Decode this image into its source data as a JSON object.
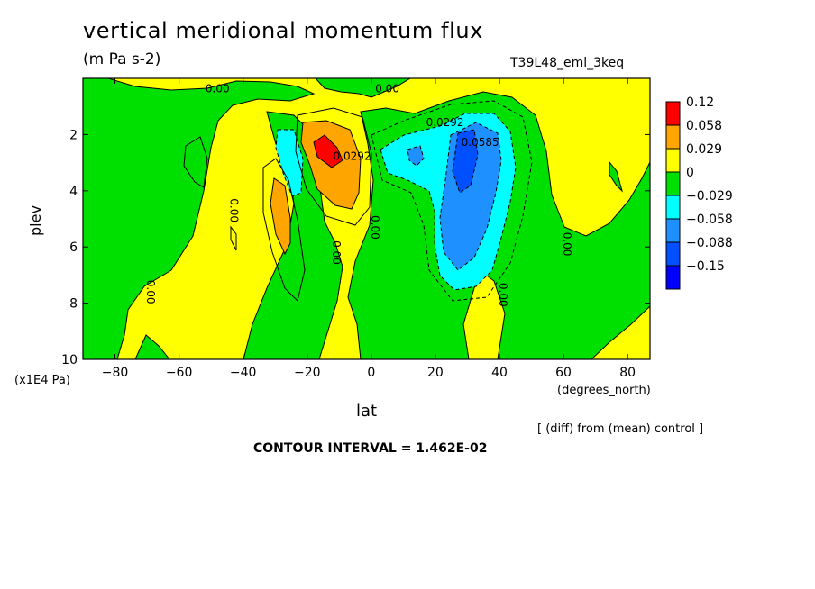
{
  "chart_data": {
    "type": "heatmap",
    "title": "vertical meridional momentum flux",
    "subtitle": "(m Pa s-2)",
    "run_label": "T39L48_eml_3keq",
    "xlabel": "lat",
    "xunit": "(degrees_north)",
    "ylabel": "plev",
    "yunit": "(x1E4 Pa)",
    "xlim": [
      -90,
      87
    ],
    "ylim": [
      0,
      10
    ],
    "y_inverted": true,
    "x_ticks": [
      -80,
      -60,
      -40,
      -20,
      0,
      20,
      40,
      60,
      80
    ],
    "x_tick_labels": [
      "−80",
      "−60",
      "−40",
      "−20",
      "0",
      "20",
      "40",
      "60",
      "80"
    ],
    "y_ticks": [
      2,
      4,
      6,
      8,
      10
    ],
    "y_tick_labels": [
      "2",
      "4",
      "6",
      "8",
      "10"
    ],
    "legend": {
      "placement": "right",
      "labels": [
        "0.12",
        "0.058",
        "0.029",
        "0",
        "−0.029",
        "−0.058",
        "−0.088",
        "−0.15"
      ],
      "colors": [
        "#ff0000",
        "#ffa500",
        "#ffff00",
        "#00e000",
        "#00ffff",
        "#1e90ff",
        "#0050ff",
        "#0000ff"
      ]
    },
    "contour_labels": [
      {
        "text": "0.00",
        "lon": -48,
        "p": 0.5
      },
      {
        "text": "0.00",
        "lon": 5,
        "p": 0.5
      },
      {
        "text": "0.00",
        "lon": -44,
        "p": 4.7
      },
      {
        "text": "0.00",
        "lon": -70,
        "p": 7.6
      },
      {
        "text": "0.00",
        "lon": -12,
        "p": 6.2
      },
      {
        "text": "0.00",
        "lon": 0,
        "p": 5.3
      },
      {
        "text": "0.0292",
        "lon": -6,
        "p": 2.9
      },
      {
        "text": "0.0292",
        "lon": 23,
        "p": 1.7
      },
      {
        "text": "0.0585",
        "lon": 34,
        "p": 2.4
      },
      {
        "text": "0.00",
        "lon": 40,
        "p": 7.7
      },
      {
        "text": "0.00",
        "lon": 60,
        "p": 5.9
      }
    ],
    "contour_interval_text": "CONTOUR INTERVAL = 1.462E-02",
    "note": "[ (diff) from (mean) control ]",
    "grid": false
  }
}
